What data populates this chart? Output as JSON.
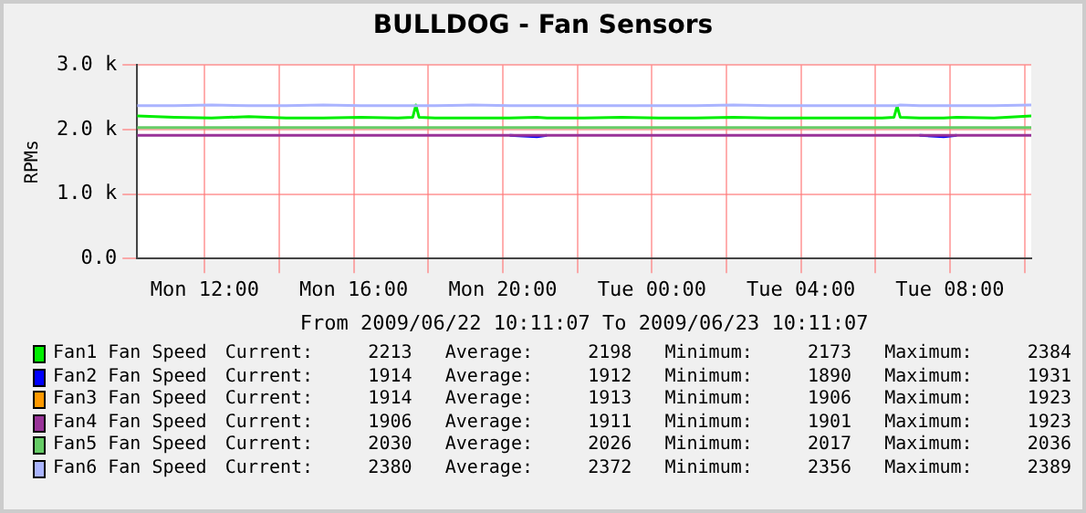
{
  "chart_data": {
    "type": "line",
    "title": "BULLDOG - Fan Sensors",
    "ylabel": "RPMs",
    "xlabel": "From 2009/06/22 10:11:07 To 2009/06/23 10:11:07",
    "x": [
      "2009-06-22T10:11",
      "2009-06-22T11:11",
      "2009-06-22T12:11",
      "2009-06-22T13:11",
      "2009-06-22T14:11",
      "2009-06-22T15:11",
      "2009-06-22T16:11",
      "2009-06-22T17:11",
      "2009-06-22T17:35",
      "2009-06-22T17:40",
      "2009-06-22T17:45",
      "2009-06-22T18:11",
      "2009-06-22T19:11",
      "2009-06-22T20:11",
      "2009-06-22T20:55",
      "2009-06-22T21:11",
      "2009-06-22T22:11",
      "2009-06-22T23:11",
      "2009-06-23T00:11",
      "2009-06-23T01:11",
      "2009-06-23T02:11",
      "2009-06-23T03:11",
      "2009-06-23T04:11",
      "2009-06-23T05:11",
      "2009-06-23T06:11",
      "2009-06-23T06:30",
      "2009-06-23T06:35",
      "2009-06-23T06:40",
      "2009-06-23T07:11",
      "2009-06-23T07:50",
      "2009-06-23T08:11",
      "2009-06-23T09:11",
      "2009-06-23T10:11"
    ],
    "series": [
      {
        "name": "Fan1 Fan Speed",
        "color": "#00ee00",
        "values": [
          2210,
          2190,
          2180,
          2200,
          2180,
          2180,
          2190,
          2180,
          2190,
          2380,
          2190,
          2180,
          2180,
          2180,
          2190,
          2180,
          2180,
          2190,
          2180,
          2180,
          2190,
          2180,
          2180,
          2180,
          2180,
          2190,
          2360,
          2190,
          2180,
          2180,
          2190,
          2180,
          2210
        ]
      },
      {
        "name": "Fan2 Fan Speed",
        "color": "#0000ff",
        "values": [
          null,
          null,
          null,
          null,
          null,
          null,
          null,
          null,
          null,
          null,
          null,
          null,
          null,
          1910,
          1890,
          1910,
          null,
          null,
          null,
          null,
          null,
          null,
          null,
          null,
          null,
          null,
          null,
          null,
          1910,
          1890,
          1910,
          null,
          null
        ]
      },
      {
        "name": "Fan3 Fan Speed",
        "color": "#ff9900",
        "values": [
          null,
          null,
          null,
          null,
          null,
          null,
          null,
          null,
          null,
          null,
          null,
          null,
          null,
          null,
          null,
          null,
          null,
          null,
          null,
          null,
          null,
          null,
          null,
          null,
          null,
          null,
          null,
          null,
          null,
          null,
          null,
          null,
          null
        ]
      },
      {
        "name": "Fan4 Fan Speed",
        "color": "#993399",
        "values": [
          1910,
          1910,
          1910,
          1910,
          1910,
          1910,
          1910,
          1910,
          1910,
          1910,
          1910,
          1910,
          1910,
          1910,
          1910,
          1910,
          1910,
          1910,
          1910,
          1910,
          1910,
          1910,
          1910,
          1910,
          1910,
          1910,
          1910,
          1910,
          1910,
          1910,
          1910,
          1910,
          1910
        ]
      },
      {
        "name": "Fan5 Fan Speed",
        "color": "#66cc66",
        "values": [
          2030,
          2030,
          2030,
          2030,
          2030,
          2030,
          2030,
          2030,
          2030,
          2030,
          2030,
          2030,
          2030,
          2030,
          2030,
          2030,
          2030,
          2030,
          2030,
          2030,
          2030,
          2030,
          2030,
          2030,
          2030,
          2030,
          2030,
          2030,
          2030,
          2030,
          2030,
          2030,
          2030
        ]
      },
      {
        "name": "Fan6 Fan Speed",
        "color": "#aab4ff",
        "values": [
          2370,
          2370,
          2380,
          2370,
          2370,
          2380,
          2370,
          2370,
          2370,
          2370,
          2370,
          2370,
          2380,
          2370,
          2370,
          2370,
          2370,
          2370,
          2370,
          2370,
          2380,
          2370,
          2370,
          2370,
          2370,
          2370,
          2370,
          2380,
          2370,
          2370,
          2370,
          2370,
          2380
        ]
      }
    ],
    "ylim": [
      0,
      3000
    ],
    "yticks": [
      {
        "value": 0,
        "label": "0.0"
      },
      {
        "value": 1000,
        "label": "1.0 k"
      },
      {
        "value": 2000,
        "label": "2.0 k"
      },
      {
        "value": 3000,
        "label": "3.0 k"
      }
    ],
    "xlim": [
      "2009-06-22T10:11",
      "2009-06-23T10:11"
    ],
    "xticks": [
      {
        "value": "2009-06-22T12:00",
        "label": "Mon 12:00"
      },
      {
        "value": "2009-06-22T14:00",
        "label": null
      },
      {
        "value": "2009-06-22T16:00",
        "label": "Mon 16:00"
      },
      {
        "value": "2009-06-22T18:00",
        "label": null
      },
      {
        "value": "2009-06-22T20:00",
        "label": "Mon 20:00"
      },
      {
        "value": "2009-06-22T22:00",
        "label": null
      },
      {
        "value": "2009-06-23T00:00",
        "label": "Tue 00:00"
      },
      {
        "value": "2009-06-23T02:00",
        "label": null
      },
      {
        "value": "2009-06-23T04:00",
        "label": "Tue 04:00"
      },
      {
        "value": "2009-06-23T06:00",
        "label": null
      },
      {
        "value": "2009-06-23T08:00",
        "label": "Tue 08:00"
      },
      {
        "value": "2009-06-23T10:00",
        "label": null
      }
    ],
    "grid": true,
    "legend": "bottom",
    "marker": "none",
    "line_style": "solid",
    "annotations": [
      "Current:     2213   Average:     2198   Minimum:     2173   Maximum:     2384",
      "Current:     1914   Average:     1912   Minimum:     1890   Maximum:     1931",
      "Current:     1914   Average:     1913   Minimum:     1906   Maximum:     1923",
      "Current:     1906   Average:     1911   Minimum:     1901   Maximum:     1923",
      "Current:     2030   Average:     2026   Minimum:     2017   Maximum:     2036",
      "Current:     2380   Average:     2372   Minimum:     2356   Maximum:     2389"
    ]
  }
}
